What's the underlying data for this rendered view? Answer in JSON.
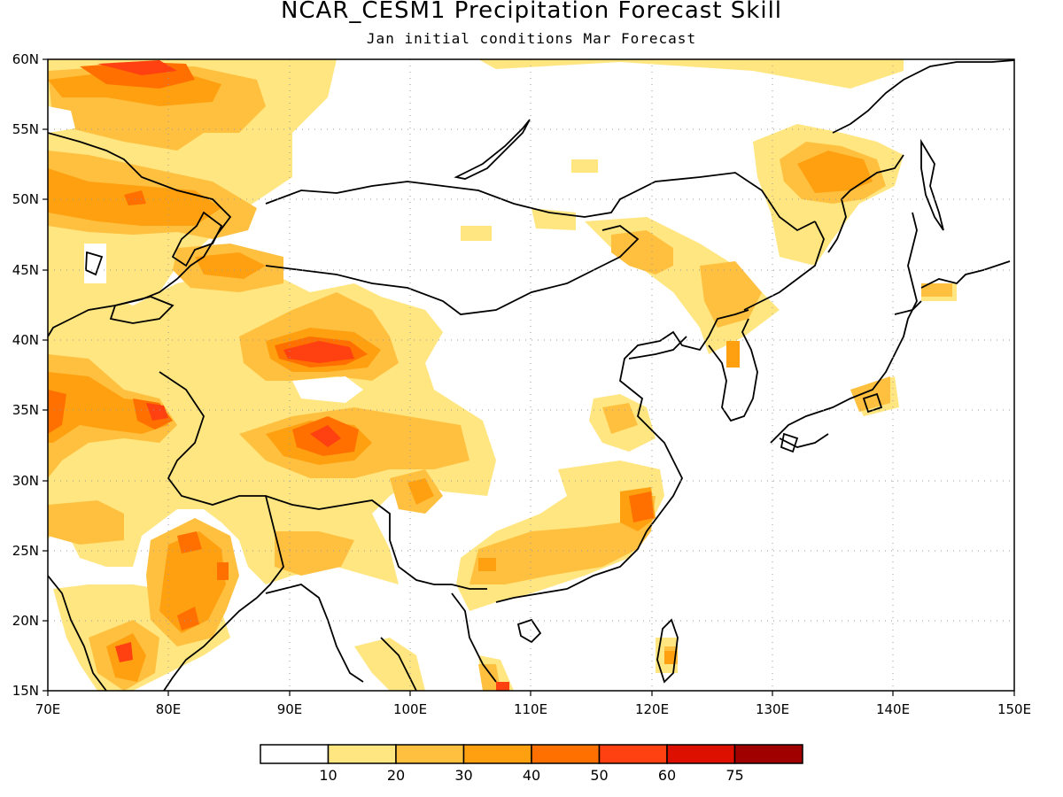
{
  "title": "NCAR_CESM1 Precipitation Forecast Skill",
  "subtitle": "Jan initial conditions  Mar Forecast",
  "map": {
    "lon_range": [
      70,
      150
    ],
    "lat_range": [
      15,
      60
    ],
    "lon_labels": [
      "70E",
      "80E",
      "90E",
      "100E",
      "110E",
      "120E",
      "130E",
      "140E",
      "150E"
    ],
    "lat_labels": [
      "15N",
      "20N",
      "25N",
      "30N",
      "35N",
      "40N",
      "45N",
      "50N",
      "55N",
      "60N"
    ]
  },
  "colorbar": {
    "colors": [
      "#ffffff",
      "#ffe680",
      "#ffc040",
      "#ffa010",
      "#ff7000",
      "#ff4010",
      "#dd1000",
      "#a00000"
    ],
    "labels": [
      "10",
      "20",
      "30",
      "40",
      "50",
      "60",
      "75"
    ]
  }
}
